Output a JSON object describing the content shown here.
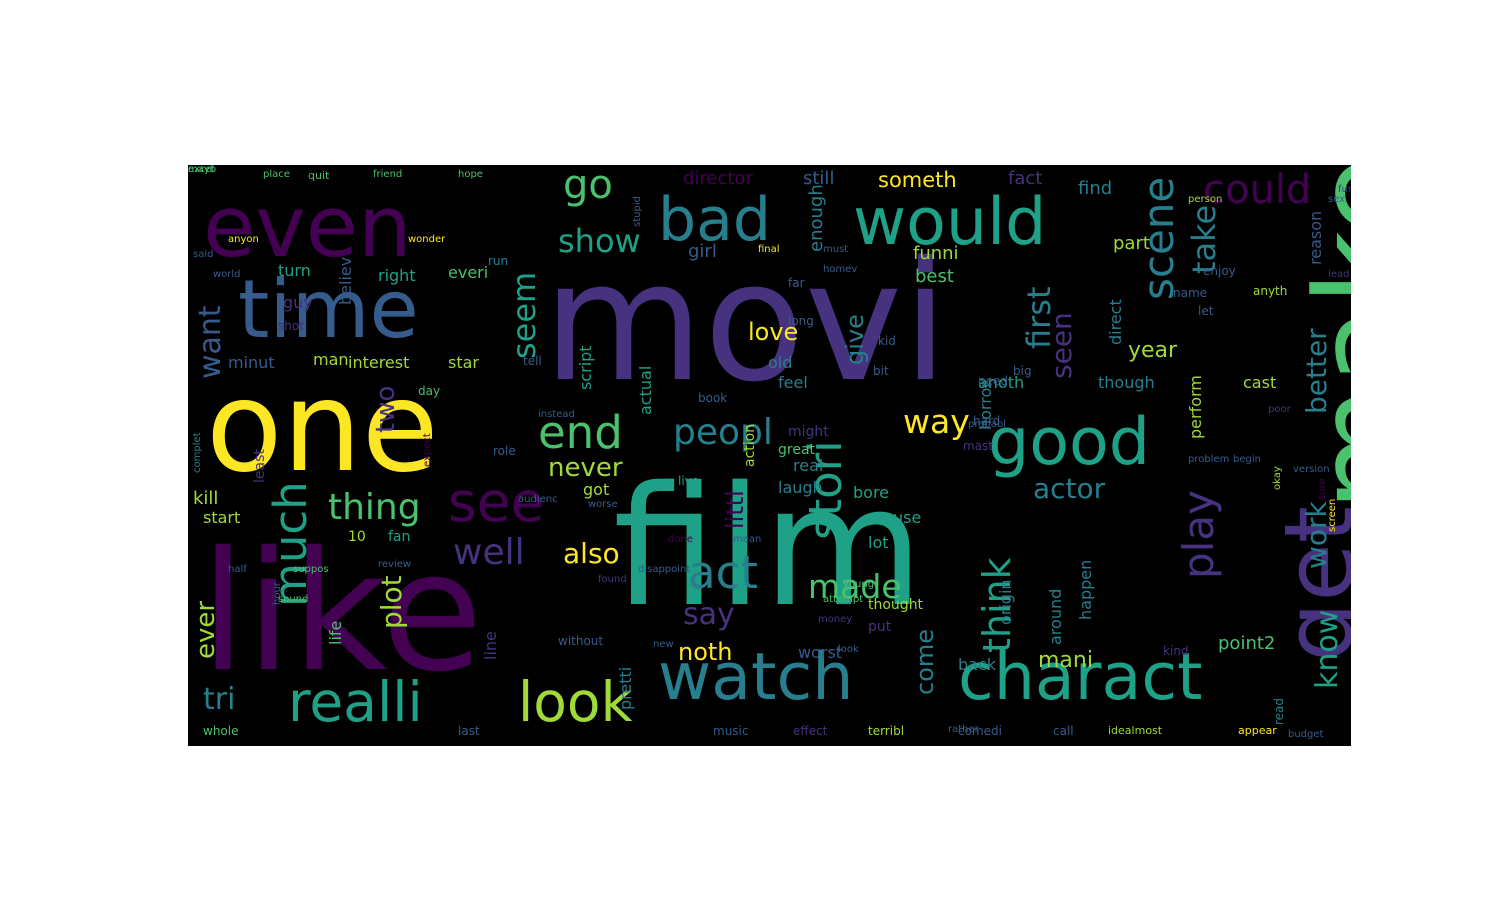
{
  "palette": {
    "dark_purple": "#440154",
    "indigo": "#46327e",
    "blue": "#365c8d",
    "teal_blue": "#277f8e",
    "teal": "#1fa187",
    "green": "#4ac16d",
    "light_green": "#a0da39",
    "yellow": "#fde725"
  },
  "cloud": {
    "background": "#000000",
    "words": [
      {
        "text": "movi",
        "color": "#46327e"
      },
      {
        "text": "film",
        "color": "#1fa187"
      },
      {
        "text": "one",
        "color": "#fde725"
      },
      {
        "text": "like",
        "color": "#440154"
      },
      {
        "text": "make",
        "color": "#4ac16d"
      },
      {
        "text": "even",
        "color": "#440154"
      },
      {
        "text": "time",
        "color": "#365c8d"
      },
      {
        "text": "get",
        "color": "#46327e"
      },
      {
        "text": "watch",
        "color": "#277f8e"
      },
      {
        "text": "charact",
        "color": "#1fa187"
      },
      {
        "text": "good",
        "color": "#1fa187"
      },
      {
        "text": "would",
        "color": "#1fa187"
      },
      {
        "text": "bad",
        "color": "#277f8e"
      },
      {
        "text": "realli",
        "color": "#1fa187"
      },
      {
        "text": "look",
        "color": "#a0da39"
      },
      {
        "text": "see",
        "color": "#440154"
      },
      {
        "text": "scene",
        "color": "#277f8e"
      },
      {
        "text": "much",
        "color": "#1fa187"
      },
      {
        "text": "stori",
        "color": "#1fa187"
      },
      {
        "text": "end",
        "color": "#4ac16d"
      },
      {
        "text": "act",
        "color": "#277f8e"
      },
      {
        "text": "play",
        "color": "#46327e"
      },
      {
        "text": "could",
        "color": "#440154"
      },
      {
        "text": "go",
        "color": "#4ac16d"
      },
      {
        "text": "peopl",
        "color": "#277f8e"
      },
      {
        "text": "thing",
        "color": "#4ac16d"
      },
      {
        "text": "well",
        "color": "#46327e"
      },
      {
        "text": "made",
        "color": "#4ac16d"
      },
      {
        "text": "think",
        "color": "#1fa187"
      },
      {
        "text": "first",
        "color": "#277f8e"
      },
      {
        "text": "take",
        "color": "#277f8e"
      },
      {
        "text": "seem",
        "color": "#1fa187"
      },
      {
        "text": "show",
        "color": "#1fa187"
      },
      {
        "text": "way",
        "color": "#fde725"
      },
      {
        "text": "actor",
        "color": "#277f8e"
      },
      {
        "text": "plot",
        "color": "#a0da39"
      },
      {
        "text": "know",
        "color": "#1fa187"
      },
      {
        "text": "say",
        "color": "#46327e"
      },
      {
        "text": "tri",
        "color": "#277f8e"
      },
      {
        "text": "want",
        "color": "#365c8d"
      },
      {
        "text": "work",
        "color": "#277f8e"
      },
      {
        "text": "better",
        "color": "#277f8e"
      },
      {
        "text": "seen",
        "color": "#46327e"
      },
      {
        "text": "also",
        "color": "#fde725"
      },
      {
        "text": "never",
        "color": "#a0da39"
      },
      {
        "text": "ever",
        "color": "#a0da39"
      },
      {
        "text": "come",
        "color": "#277f8e"
      },
      {
        "text": "two",
        "color": "#46327e"
      },
      {
        "text": "noth",
        "color": "#fde725"
      },
      {
        "text": "mani",
        "color": "#a0da39"
      },
      {
        "text": "year",
        "color": "#a0da39"
      },
      {
        "text": "love",
        "color": "#fde725"
      },
      {
        "text": "give",
        "color": "#277f8e"
      },
      {
        "text": "littl",
        "color": "#440154"
      },
      {
        "text": "someth",
        "color": "#fde725"
      },
      {
        "text": "director",
        "color": "#440154"
      },
      {
        "text": "still",
        "color": "#365c8d"
      },
      {
        "text": "fact",
        "color": "#46327e"
      },
      {
        "text": "find",
        "color": "#277f8e"
      },
      {
        "text": "enough",
        "color": "#277f8e"
      },
      {
        "text": "girl",
        "color": "#365c8d"
      },
      {
        "text": "funni",
        "color": "#a0da39"
      },
      {
        "text": "best",
        "color": "#4ac16d"
      },
      {
        "text": "part",
        "color": "#a0da39"
      },
      {
        "text": "reason",
        "color": "#365c8d"
      },
      {
        "text": "turn",
        "color": "#1fa187"
      },
      {
        "text": "believ",
        "color": "#365c8d"
      },
      {
        "text": "everi",
        "color": "#4ac16d"
      },
      {
        "text": "right",
        "color": "#1fa187"
      },
      {
        "text": "minut",
        "color": "#365c8d"
      },
      {
        "text": "interest",
        "color": "#a0da39"
      },
      {
        "text": "star",
        "color": "#a0da39"
      },
      {
        "text": "man",
        "color": "#a0da39"
      },
      {
        "text": "guy",
        "color": "#46327e"
      },
      {
        "text": "script",
        "color": "#1fa187"
      },
      {
        "text": "actual",
        "color": "#1fa187"
      },
      {
        "text": "old",
        "color": "#277f8e"
      },
      {
        "text": "feel",
        "color": "#277f8e"
      },
      {
        "text": "anoth",
        "color": "#1fa187"
      },
      {
        "text": "horror",
        "color": "#277f8e"
      },
      {
        "text": "direct",
        "color": "#277f8e"
      },
      {
        "text": "though",
        "color": "#277f8e"
      },
      {
        "text": "perform",
        "color": "#a0da39"
      },
      {
        "text": "cast",
        "color": "#a0da39"
      },
      {
        "text": "might",
        "color": "#46327e"
      },
      {
        "text": "action",
        "color": "#a0da39"
      },
      {
        "text": "great",
        "color": "#4ac16d"
      },
      {
        "text": "kill",
        "color": "#a0da39"
      },
      {
        "text": "start",
        "color": "#a0da39"
      },
      {
        "text": "got",
        "color": "#a0da39"
      },
      {
        "text": "laugh",
        "color": "#277f8e"
      },
      {
        "text": "real",
        "color": "#277f8e"
      },
      {
        "text": "bore",
        "color": "#1fa187"
      },
      {
        "text": "use",
        "color": "#1fa187"
      },
      {
        "text": "lot",
        "color": "#1fa187"
      },
      {
        "text": "10",
        "color": "#a0da39"
      },
      {
        "text": "fan",
        "color": "#1fa187"
      },
      {
        "text": "origin",
        "color": "#277f8e"
      },
      {
        "text": "around",
        "color": "#277f8e"
      },
      {
        "text": "happen",
        "color": "#277f8e"
      },
      {
        "text": "point2",
        "color": "#4ac16d"
      },
      {
        "text": "back",
        "color": "#277f8e"
      },
      {
        "text": "worst",
        "color": "#365c8d"
      },
      {
        "text": "life",
        "color": "#4ac16d"
      },
      {
        "text": "line",
        "color": "#46327e"
      },
      {
        "text": "pretti",
        "color": "#277f8e"
      },
      {
        "text": "read",
        "color": "#277f8e"
      },
      {
        "text": "thought",
        "color": "#a0da39"
      },
      {
        "text": "put",
        "color": "#46327e"
      },
      {
        "text": "last",
        "color": "#365c8d"
      },
      {
        "text": "music",
        "color": "#365c8d"
      },
      {
        "text": "effect",
        "color": "#46327e"
      },
      {
        "text": "terribl",
        "color": "#a0da39"
      },
      {
        "text": "comedi",
        "color": "#365c8d"
      },
      {
        "text": "call",
        "color": "#365c8d"
      },
      {
        "text": "idealmost",
        "color": "#a0da39"
      },
      {
        "text": "appear",
        "color": "#fde725"
      },
      {
        "text": "whole",
        "color": "#4ac16d"
      },
      {
        "text": "without",
        "color": "#365c8d"
      },
      {
        "text": "kind",
        "color": "#46327e"
      },
      {
        "text": "role",
        "color": "#365c8d"
      },
      {
        "text": "book",
        "color": "#365c8d"
      },
      {
        "text": "far",
        "color": "#365c8d"
      },
      {
        "text": "long",
        "color": "#365c8d"
      },
      {
        "text": "kid",
        "color": "#365c8d"
      },
      {
        "text": "bit",
        "color": "#365c8d"
      },
      {
        "text": "big",
        "color": "#365c8d"
      },
      {
        "text": "name",
        "color": "#365c8d"
      },
      {
        "text": "enjoy",
        "color": "#365c8d"
      },
      {
        "text": "let",
        "color": "#365c8d"
      },
      {
        "text": "anyth",
        "color": "#a0da39"
      },
      {
        "text": "run",
        "color": "#277f8e"
      },
      {
        "text": "quit",
        "color": "#4ac16d"
      },
      {
        "text": "place",
        "color": "#4ac16d"
      },
      {
        "text": "friend",
        "color": "#4ac16d"
      },
      {
        "text": "hope",
        "color": "#4ac16d"
      },
      {
        "text": "stupid",
        "color": "#365c8d"
      },
      {
        "text": "homev",
        "color": "#365c8d"
      },
      {
        "text": "must",
        "color": "#365c8d"
      },
      {
        "text": "final",
        "color": "#fde725"
      },
      {
        "text": "wonder",
        "color": "#fde725"
      },
      {
        "text": "anyon",
        "color": "#fde725"
      },
      {
        "text": "world",
        "color": "#365c8d"
      },
      {
        "text": "shot",
        "color": "#46327e"
      },
      {
        "text": "tell",
        "color": "#365c8d"
      },
      {
        "text": "day",
        "color": "#4ac16d"
      },
      {
        "text": "complet",
        "color": "#277f8e"
      },
      {
        "text": "least",
        "color": "#46327e"
      },
      {
        "text": "expect",
        "color": "#440154"
      },
      {
        "text": "live",
        "color": "#1fa187"
      },
      {
        "text": "need",
        "color": "#365c8d"
      },
      {
        "text": "hard",
        "color": "#365c8d"
      },
      {
        "text": "probabl",
        "color": "#365c8d"
      },
      {
        "text": "mast",
        "color": "#46327e"
      },
      {
        "text": "problem",
        "color": "#365c8d"
      },
      {
        "text": "begin",
        "color": "#365c8d"
      },
      {
        "text": "okay",
        "color": "#a0da39"
      },
      {
        "text": "poor",
        "color": "#46327e"
      },
      {
        "text": "sure",
        "color": "#440154"
      },
      {
        "text": "lead",
        "color": "#46327e"
      },
      {
        "text": "screen",
        "color": "#fde725"
      },
      {
        "text": "person",
        "color": "#a0da39"
      },
      {
        "text": "young",
        "color": "#4ac16d"
      },
      {
        "text": "money",
        "color": "#46327e"
      },
      {
        "text": "found",
        "color": "#46327e"
      },
      {
        "text": "done",
        "color": "#440154"
      },
      {
        "text": "mean",
        "color": "#365c8d"
      },
      {
        "text": "audienc",
        "color": "#365c8d"
      },
      {
        "text": "worse",
        "color": "#365c8d"
      },
      {
        "text": "half",
        "color": "#365c8d"
      },
      {
        "text": "hour",
        "color": "#365c8d"
      },
      {
        "text": "sound",
        "color": "#4ac16d"
      },
      {
        "text": "said",
        "color": "#365c8d"
      },
      {
        "text": "instead",
        "color": "#365c8d"
      },
      {
        "text": "suppos",
        "color": "#4ac16d"
      },
      {
        "text": "review",
        "color": "#365c8d"
      },
      {
        "text": "attempt",
        "color": "#4ac16d"
      },
      {
        "text": "look",
        "color": "#365c8d"
      },
      {
        "text": "rather",
        "color": "#365c8d"
      },
      {
        "text": "disappoint",
        "color": "#365c8d"
      },
      {
        "text": "new",
        "color": "#365c8d"
      },
      {
        "text": "budget",
        "color": "#365c8d"
      },
      {
        "text": "version",
        "color": "#365c8d"
      },
      {
        "text": "sex",
        "color": "#365c8d"
      },
      {
        "text": "fun",
        "color": "#46327e"
      },
      {
        "text": "mayb",
        "color": "#4ac16d"
      },
      {
        "text": "excel",
        "color": "#4ac16d"
      }
    ]
  }
}
